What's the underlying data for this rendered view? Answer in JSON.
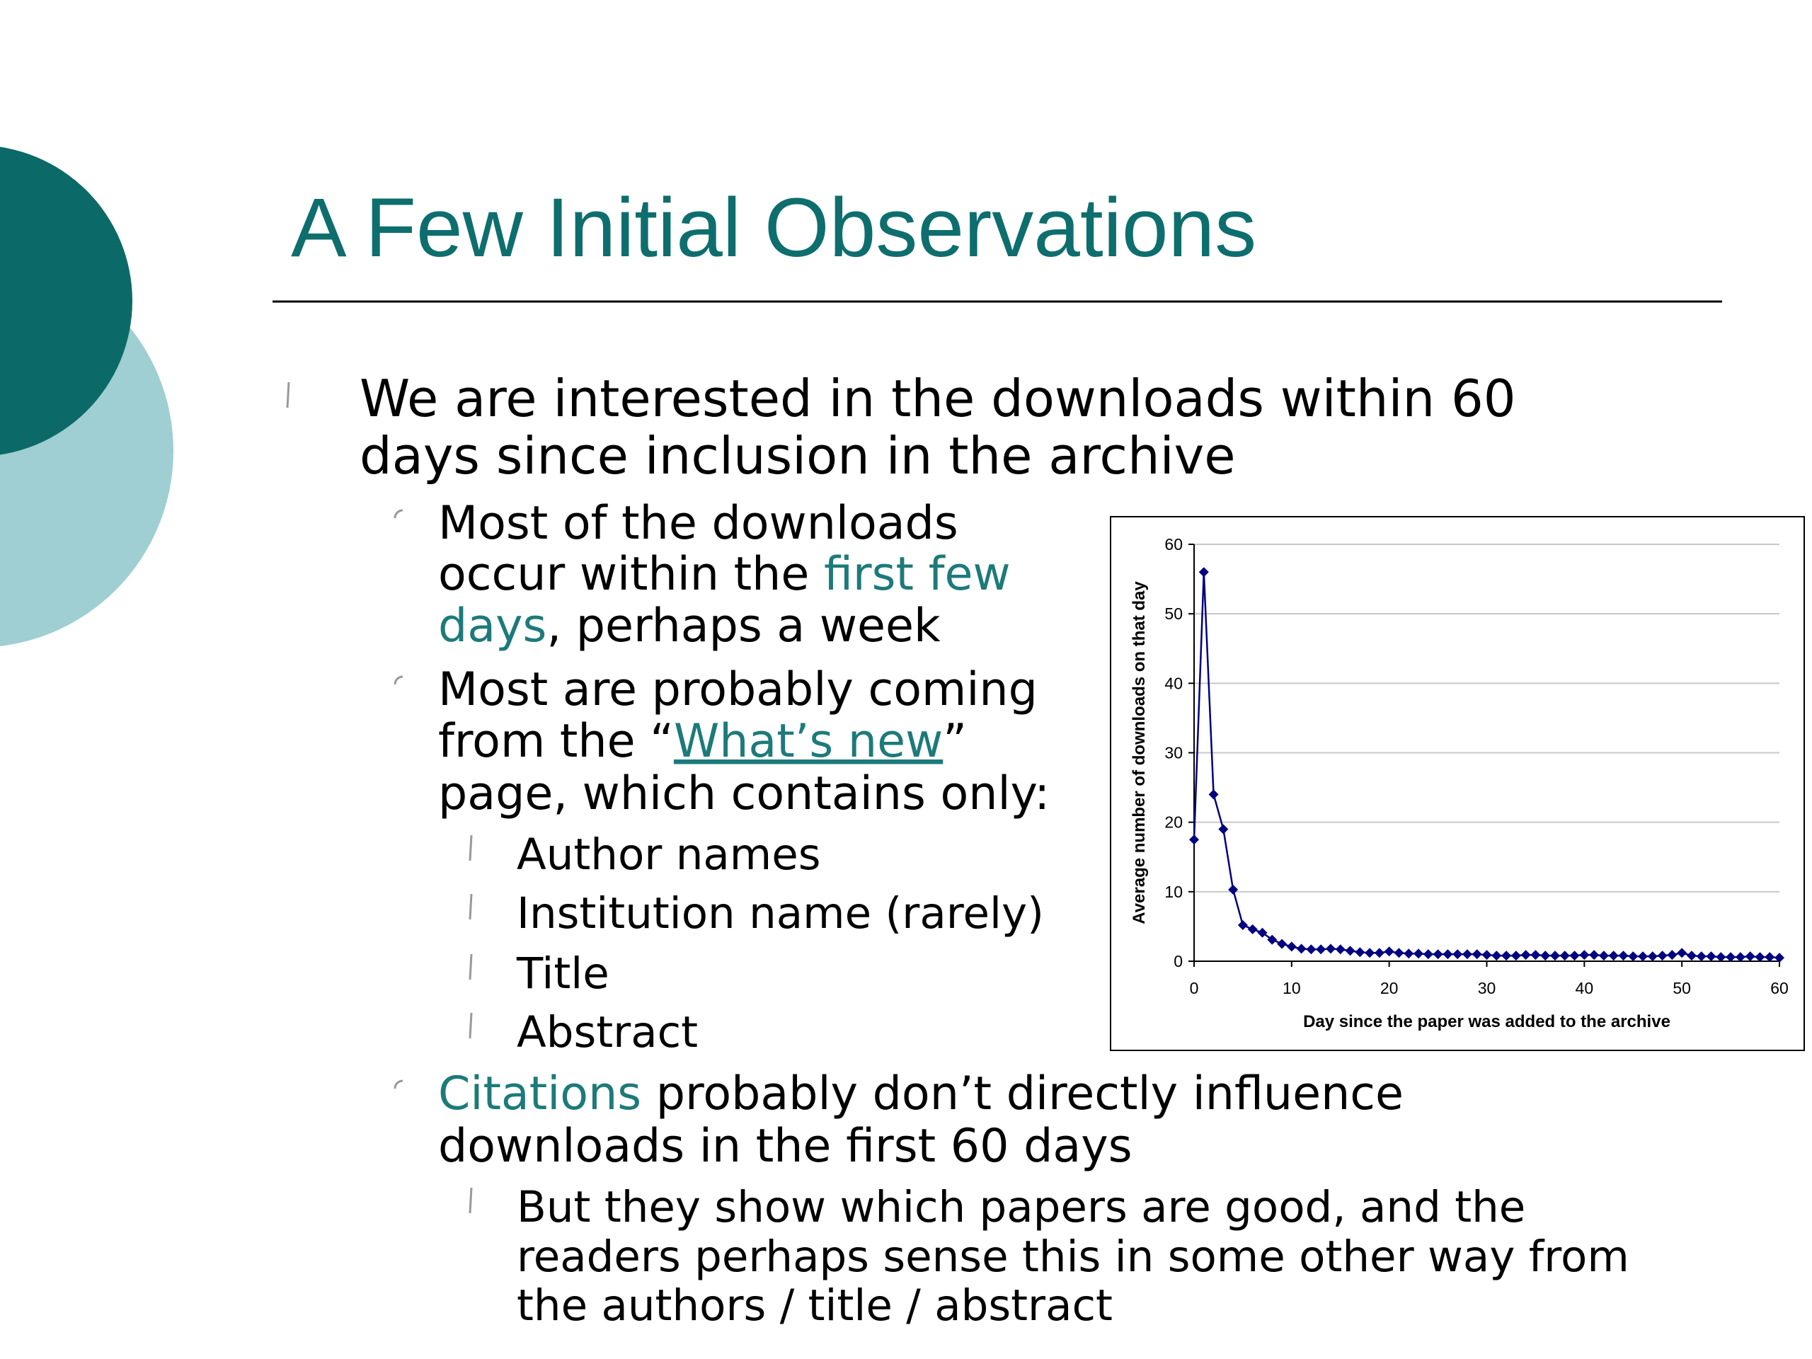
{
  "slide": {
    "title": "A Few Initial Observations",
    "bullets": [
      {
        "level": 1,
        "lines": [
          [
            "We are interested in the downloads within 60"
          ],
          [
            "days since inclusion in the archive"
          ]
        ]
      },
      {
        "level": 2,
        "lines": [
          [
            "Most of the downloads"
          ],
          [
            "occur within the ",
            {
              "text": "first few",
              "color": "#1d7a7a"
            }
          ],
          [
            {
              "text": "days",
              "color": "#1d7a7a"
            },
            ", perhaps a week"
          ]
        ]
      },
      {
        "level": 2,
        "lines": [
          [
            "Most are probably coming"
          ],
          [
            "from the “",
            {
              "text": "What’s new",
              "color": "#1d7a7a",
              "underline": true
            },
            "”"
          ],
          [
            "page, which contains only:"
          ]
        ]
      },
      {
        "level": 3,
        "lines": [
          [
            "Author names"
          ]
        ]
      },
      {
        "level": 3,
        "lines": [
          [
            "Institution name (rarely)"
          ]
        ]
      },
      {
        "level": 3,
        "lines": [
          [
            "Title"
          ]
        ]
      },
      {
        "level": 3,
        "lines": [
          [
            "Abstract"
          ]
        ]
      },
      {
        "level": 2,
        "lines": [
          [
            {
              "text": "Citations",
              "color": "#1d7a7a"
            },
            " probably don’t directly influence"
          ],
          [
            "downloads in the first 60 days"
          ]
        ]
      },
      {
        "level": 3,
        "lines": [
          [
            "But they show which papers are good, and the"
          ],
          [
            "readers perhaps sense this in some other way from"
          ],
          [
            "the authors / title / abstract"
          ]
        ]
      }
    ]
  },
  "chart_data": {
    "type": "line",
    "x_label": "Day since the paper was added to the archive",
    "y_label": "Average number of downloads on that day",
    "x": [
      0,
      1,
      2,
      3,
      4,
      5,
      6,
      7,
      8,
      9,
      10,
      11,
      12,
      13,
      14,
      15,
      16,
      17,
      18,
      19,
      20,
      21,
      22,
      23,
      24,
      25,
      26,
      27,
      28,
      29,
      30,
      31,
      32,
      33,
      34,
      35,
      36,
      37,
      38,
      39,
      40,
      41,
      42,
      43,
      44,
      45,
      46,
      47,
      48,
      49,
      50,
      51,
      52,
      53,
      54,
      55,
      56,
      57,
      58,
      59,
      60
    ],
    "series": [
      {
        "color": "#000080",
        "values": [
          17.5,
          56,
          24,
          19,
          10.3,
          5.2,
          4.6,
          4.1,
          3.1,
          2.5,
          2.1,
          1.8,
          1.7,
          1.7,
          1.8,
          1.7,
          1.5,
          1.3,
          1.2,
          1.2,
          1.4,
          1.2,
          1.1,
          1.1,
          1.0,
          1.0,
          1.0,
          1.0,
          1.0,
          1.0,
          0.9,
          0.8,
          0.8,
          0.8,
          0.9,
          0.9,
          0.8,
          0.8,
          0.8,
          0.8,
          0.9,
          0.9,
          0.8,
          0.8,
          0.8,
          0.7,
          0.7,
          0.7,
          0.8,
          0.9,
          1.2,
          0.8,
          0.7,
          0.7,
          0.6,
          0.6,
          0.6,
          0.7,
          0.6,
          0.6,
          0.5
        ]
      }
    ],
    "xlim": [
      0,
      60
    ],
    "xticks": [
      0,
      10,
      20,
      30,
      40,
      50,
      60
    ],
    "ylim": [
      0,
      60
    ],
    "yticks": [
      0,
      10,
      20,
      30,
      40,
      50,
      60
    ],
    "grid": true
  }
}
